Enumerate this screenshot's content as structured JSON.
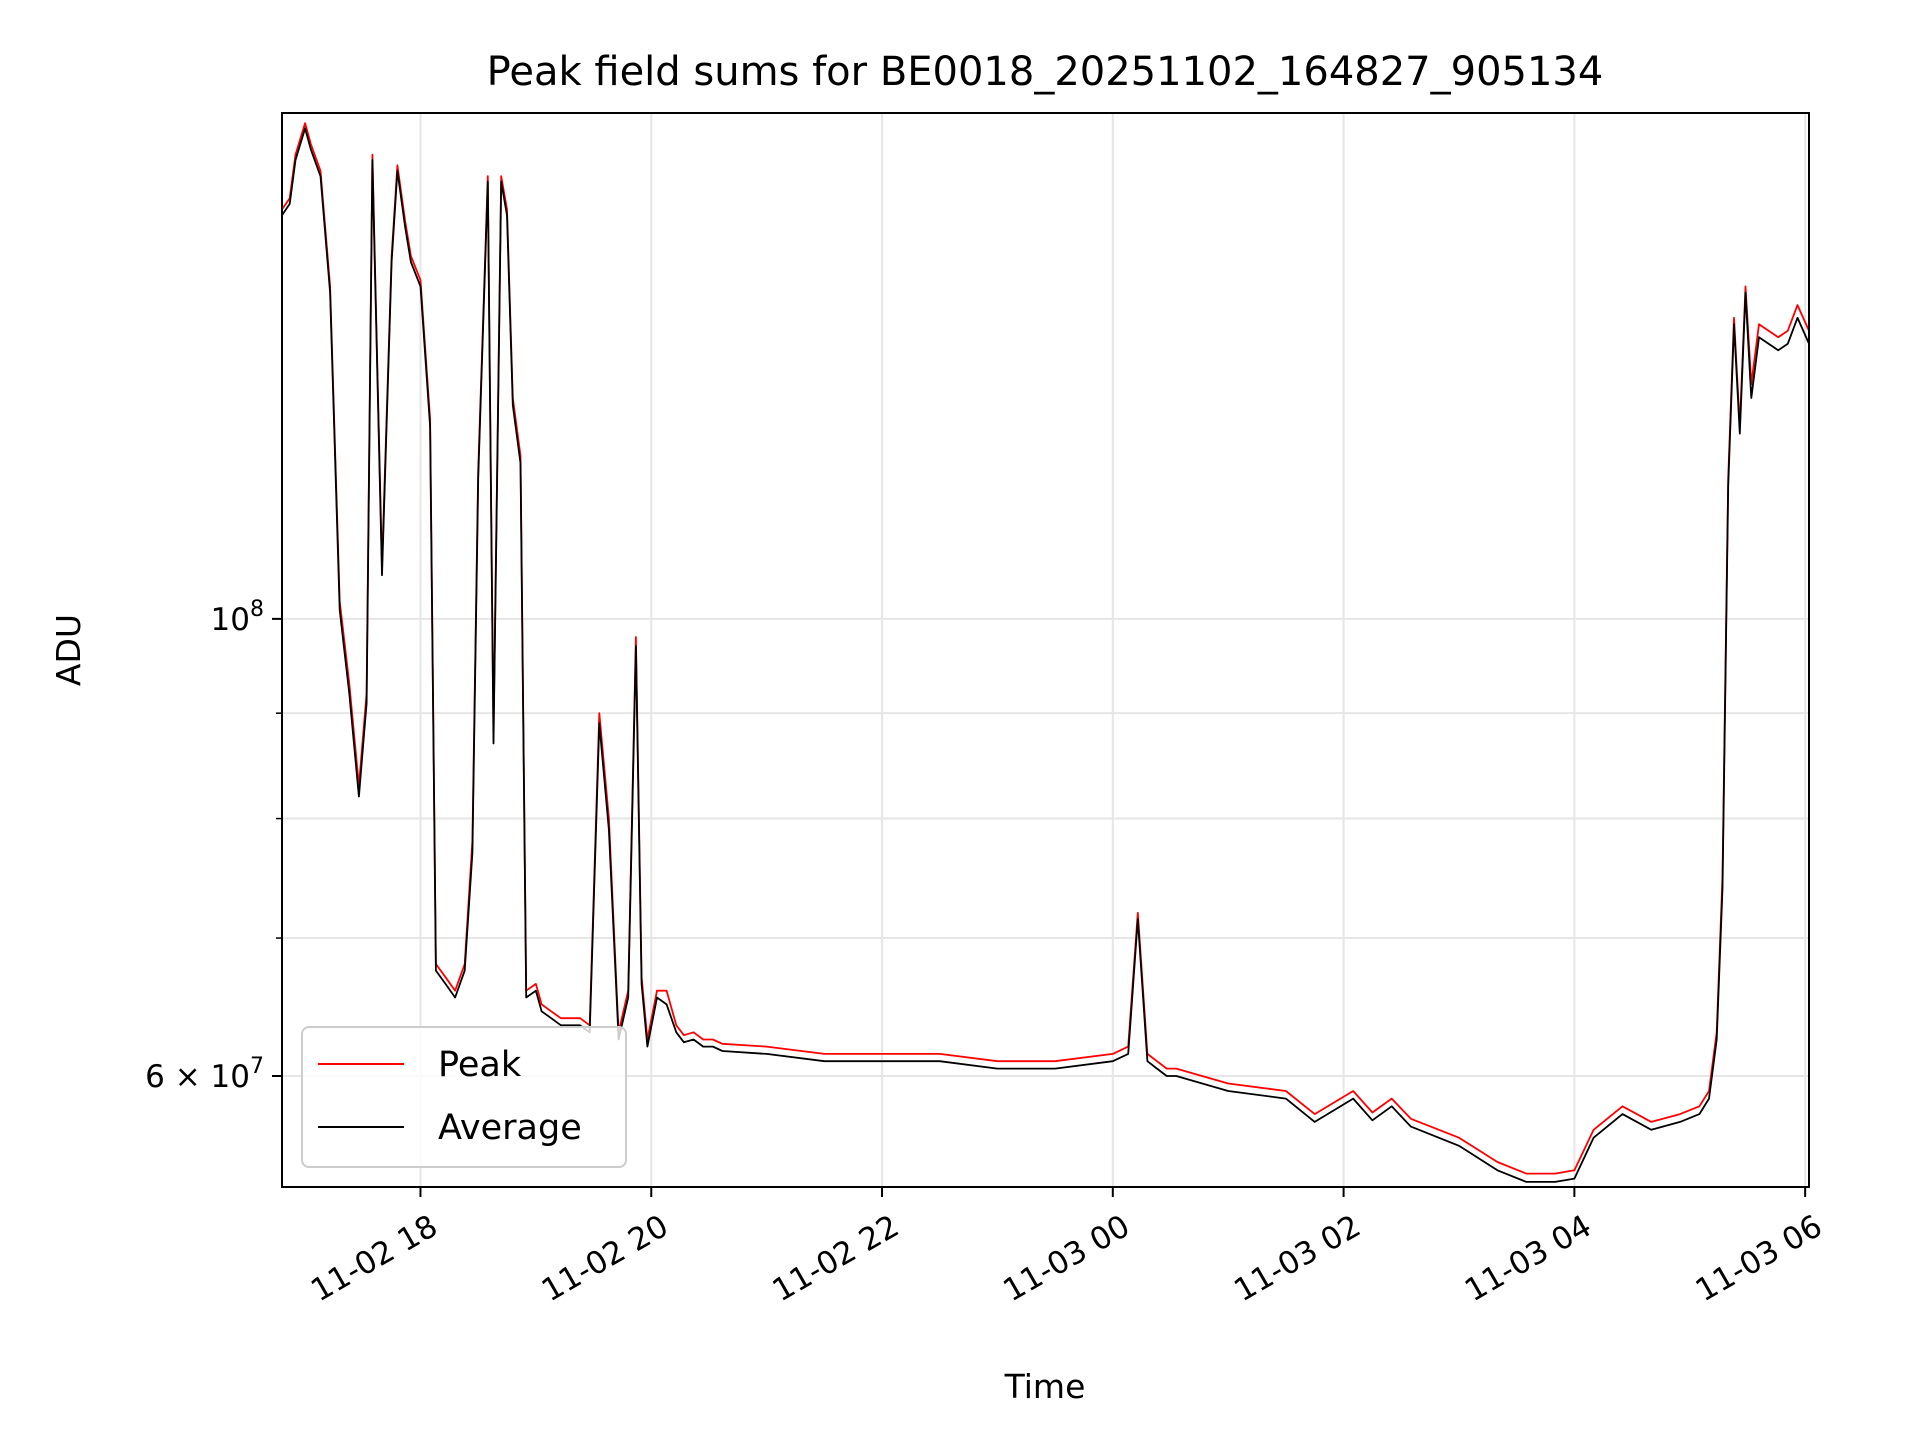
{
  "chart_data": {
    "type": "line",
    "title": "Peak field sums for BE0018_20251102_164827_905134",
    "xlabel": "Time",
    "ylabel": "ADU",
    "y_scale": "log",
    "ylim": [
      53000000,
      176000000
    ],
    "xlim": [
      "2025-11-02 16:48",
      "2025-11-03 06:02"
    ],
    "x_ticks": [
      {
        "value": "2025-11-02 18:00",
        "label": "11-02 18"
      },
      {
        "value": "2025-11-02 20:00",
        "label": "11-02 20"
      },
      {
        "value": "2025-11-02 22:00",
        "label": "11-02 22"
      },
      {
        "value": "2025-11-03 00:00",
        "label": "11-03 00"
      },
      {
        "value": "2025-11-03 02:00",
        "label": "11-03 02"
      },
      {
        "value": "2025-11-03 04:00",
        "label": "11-03 04"
      },
      {
        "value": "2025-11-03 06:00",
        "label": "11-03 06"
      }
    ],
    "y_ticks": [
      {
        "value": 100000000,
        "label_base": "10",
        "label_exp": "8"
      },
      {
        "value": 60000000,
        "label_base": "6 × 10",
        "label_exp": "7"
      }
    ],
    "y_minor_ticks": [
      70000000,
      80000000,
      90000000
    ],
    "grid": true,
    "legend": {
      "placement": "lower-left",
      "entries": [
        "Peak",
        "Average"
      ]
    },
    "colors": {
      "Peak": "#ff0000",
      "Average": "#000000",
      "grid": "#e6e6e6"
    },
    "series": [
      {
        "name": "Peak",
        "color": "#ff0000",
        "x": [
          "2025-11-02 16:48",
          "2025-11-02 16:52",
          "2025-11-02 16:55",
          "2025-11-02 17:00",
          "2025-11-02 17:03",
          "2025-11-02 17:08",
          "2025-11-02 17:13",
          "2025-11-02 17:18",
          "2025-11-02 17:23",
          "2025-11-02 17:28",
          "2025-11-02 17:32",
          "2025-11-02 17:35",
          "2025-11-02 17:40",
          "2025-11-02 17:45",
          "2025-11-02 17:48",
          "2025-11-02 17:52",
          "2025-11-02 17:55",
          "2025-11-02 18:00",
          "2025-11-02 18:05",
          "2025-11-02 18:08",
          "2025-11-02 18:13",
          "2025-11-02 18:18",
          "2025-11-02 18:23",
          "2025-11-02 18:27",
          "2025-11-02 18:30",
          "2025-11-02 18:35",
          "2025-11-02 18:38",
          "2025-11-02 18:42",
          "2025-11-02 18:45",
          "2025-11-02 18:48",
          "2025-11-02 18:52",
          "2025-11-02 18:55",
          "2025-11-02 19:00",
          "2025-11-02 19:03",
          "2025-11-02 19:08",
          "2025-11-02 19:13",
          "2025-11-02 19:18",
          "2025-11-02 19:23",
          "2025-11-02 19:28",
          "2025-11-02 19:33",
          "2025-11-02 19:38",
          "2025-11-02 19:43",
          "2025-11-02 19:48",
          "2025-11-02 19:52",
          "2025-11-02 19:55",
          "2025-11-02 19:58",
          "2025-11-02 20:03",
          "2025-11-02 20:08",
          "2025-11-02 20:13",
          "2025-11-02 20:17",
          "2025-11-02 20:22",
          "2025-11-02 20:27",
          "2025-11-02 20:32",
          "2025-11-02 20:37",
          "2025-11-02 21:00",
          "2025-11-02 21:30",
          "2025-11-02 22:00",
          "2025-11-02 22:30",
          "2025-11-02 23:00",
          "2025-11-02 23:30",
          "2025-11-03 00:00",
          "2025-11-03 00:08",
          "2025-11-03 00:13",
          "2025-11-03 00:18",
          "2025-11-03 00:23",
          "2025-11-03 00:28",
          "2025-11-03 00:33",
          "2025-11-03 01:00",
          "2025-11-03 01:30",
          "2025-11-03 01:45",
          "2025-11-03 02:05",
          "2025-11-03 02:15",
          "2025-11-03 02:25",
          "2025-11-03 02:35",
          "2025-11-03 03:00",
          "2025-11-03 03:20",
          "2025-11-03 03:35",
          "2025-11-03 03:50",
          "2025-11-03 04:00",
          "2025-11-03 04:10",
          "2025-11-03 04:25",
          "2025-11-03 04:40",
          "2025-11-03 04:55",
          "2025-11-03 05:05",
          "2025-11-03 05:10",
          "2025-11-03 05:14",
          "2025-11-03 05:17",
          "2025-11-03 05:20",
          "2025-11-03 05:23",
          "2025-11-03 05:26",
          "2025-11-03 05:29",
          "2025-11-03 05:32",
          "2025-11-03 05:36",
          "2025-11-03 05:41",
          "2025-11-03 05:46",
          "2025-11-03 05:51",
          "2025-11-03 05:56",
          "2025-11-03 06:02"
        ],
        "y": [
          158000000,
          160000000,
          168000000,
          174000000,
          170000000,
          165000000,
          145000000,
          102000000,
          93000000,
          83000000,
          92000000,
          168000000,
          106000000,
          150000000,
          166000000,
          156000000,
          150000000,
          146000000,
          125000000,
          68000000,
          67000000,
          66000000,
          68000000,
          78000000,
          118000000,
          164000000,
          88000000,
          164000000,
          158000000,
          128000000,
          120000000,
          66000000,
          66500000,
          65000000,
          64500000,
          64000000,
          64000000,
          64000000,
          63500000,
          90000000,
          80000000,
          63000000,
          66000000,
          98000000,
          67000000,
          62500000,
          66000000,
          66000000,
          63500000,
          62800000,
          63000000,
          62500000,
          62500000,
          62200000,
          62000000,
          61500000,
          61500000,
          61500000,
          61000000,
          61000000,
          61500000,
          62000000,
          72000000,
          61500000,
          61000000,
          60500000,
          60500000,
          59500000,
          59000000,
          57500000,
          59000000,
          57600000,
          58500000,
          57200000,
          56000000,
          54500000,
          53800000,
          53800000,
          54000000,
          56500000,
          58000000,
          57000000,
          57500000,
          58000000,
          59000000,
          63000000,
          75000000,
          117000000,
          140000000,
          124000000,
          145000000,
          130000000,
          139000000,
          138000000,
          137000000,
          138000000,
          142000000,
          138000000
        ]
      },
      {
        "name": "Average",
        "color": "#000000",
        "x": [
          "2025-11-02 16:48",
          "2025-11-02 16:52",
          "2025-11-02 16:55",
          "2025-11-02 17:00",
          "2025-11-02 17:03",
          "2025-11-02 17:08",
          "2025-11-02 17:13",
          "2025-11-02 17:18",
          "2025-11-02 17:23",
          "2025-11-02 17:28",
          "2025-11-02 17:32",
          "2025-11-02 17:35",
          "2025-11-02 17:40",
          "2025-11-02 17:45",
          "2025-11-02 17:48",
          "2025-11-02 17:52",
          "2025-11-02 17:55",
          "2025-11-02 18:00",
          "2025-11-02 18:05",
          "2025-11-02 18:08",
          "2025-11-02 18:13",
          "2025-11-02 18:18",
          "2025-11-02 18:23",
          "2025-11-02 18:27",
          "2025-11-02 18:30",
          "2025-11-02 18:35",
          "2025-11-02 18:38",
          "2025-11-02 18:42",
          "2025-11-02 18:45",
          "2025-11-02 18:48",
          "2025-11-02 18:52",
          "2025-11-02 18:55",
          "2025-11-02 19:00",
          "2025-11-02 19:03",
          "2025-11-02 19:08",
          "2025-11-02 19:13",
          "2025-11-02 19:18",
          "2025-11-02 19:23",
          "2025-11-02 19:28",
          "2025-11-02 19:33",
          "2025-11-02 19:38",
          "2025-11-02 19:43",
          "2025-11-02 19:48",
          "2025-11-02 19:52",
          "2025-11-02 19:55",
          "2025-11-02 19:58",
          "2025-11-02 20:03",
          "2025-11-02 20:08",
          "2025-11-02 20:13",
          "2025-11-02 20:17",
          "2025-11-02 20:22",
          "2025-11-02 20:27",
          "2025-11-02 20:32",
          "2025-11-02 20:37",
          "2025-11-02 21:00",
          "2025-11-02 21:30",
          "2025-11-02 22:00",
          "2025-11-02 22:30",
          "2025-11-02 23:00",
          "2025-11-02 23:30",
          "2025-11-03 00:00",
          "2025-11-03 00:08",
          "2025-11-03 00:13",
          "2025-11-03 00:18",
          "2025-11-03 00:23",
          "2025-11-03 00:28",
          "2025-11-03 00:33",
          "2025-11-03 01:00",
          "2025-11-03 01:30",
          "2025-11-03 01:45",
          "2025-11-03 02:05",
          "2025-11-03 02:15",
          "2025-11-03 02:25",
          "2025-11-03 02:35",
          "2025-11-03 03:00",
          "2025-11-03 03:20",
          "2025-11-03 03:35",
          "2025-11-03 03:50",
          "2025-11-03 04:00",
          "2025-11-03 04:10",
          "2025-11-03 04:25",
          "2025-11-03 04:40",
          "2025-11-03 04:55",
          "2025-11-03 05:05",
          "2025-11-03 05:10",
          "2025-11-03 05:14",
          "2025-11-03 05:17",
          "2025-11-03 05:20",
          "2025-11-03 05:23",
          "2025-11-03 05:26",
          "2025-11-03 05:29",
          "2025-11-03 05:32",
          "2025-11-03 05:36",
          "2025-11-03 05:41",
          "2025-11-03 05:46",
          "2025-11-03 05:51",
          "2025-11-03 05:56",
          "2025-11-03 06:02"
        ],
        "y": [
          157000000,
          159000000,
          167000000,
          173000000,
          169000000,
          164000000,
          144000000,
          101000000,
          92000000,
          82000000,
          91000000,
          167000000,
          105000000,
          149000000,
          165000000,
          155000000,
          149000000,
          145000000,
          124000000,
          67500000,
          66500000,
          65500000,
          67500000,
          77000000,
          117000000,
          163000000,
          87000000,
          163000000,
          157000000,
          127000000,
          119000000,
          65500000,
          66000000,
          64500000,
          64000000,
          63500000,
          63500000,
          63500000,
          63000000,
          89000000,
          79000000,
          62500000,
          65500000,
          97000000,
          66500000,
          62000000,
          65500000,
          65000000,
          63000000,
          62300000,
          62500000,
          62000000,
          62000000,
          61700000,
          61500000,
          61000000,
          61000000,
          61000000,
          60500000,
          60500000,
          61000000,
          61500000,
          71500000,
          61000000,
          60500000,
          60000000,
          60000000,
          59000000,
          58500000,
          57000000,
          58500000,
          57100000,
          58000000,
          56700000,
          55500000,
          54000000,
          53300000,
          53300000,
          53500000,
          56000000,
          57500000,
          56500000,
          57000000,
          57500000,
          58500000,
          62500000,
          74000000,
          116000000,
          139000000,
          123000000,
          144000000,
          128000000,
          137000000,
          136000000,
          135000000,
          136000000,
          140000000,
          136000000
        ]
      }
    ]
  }
}
